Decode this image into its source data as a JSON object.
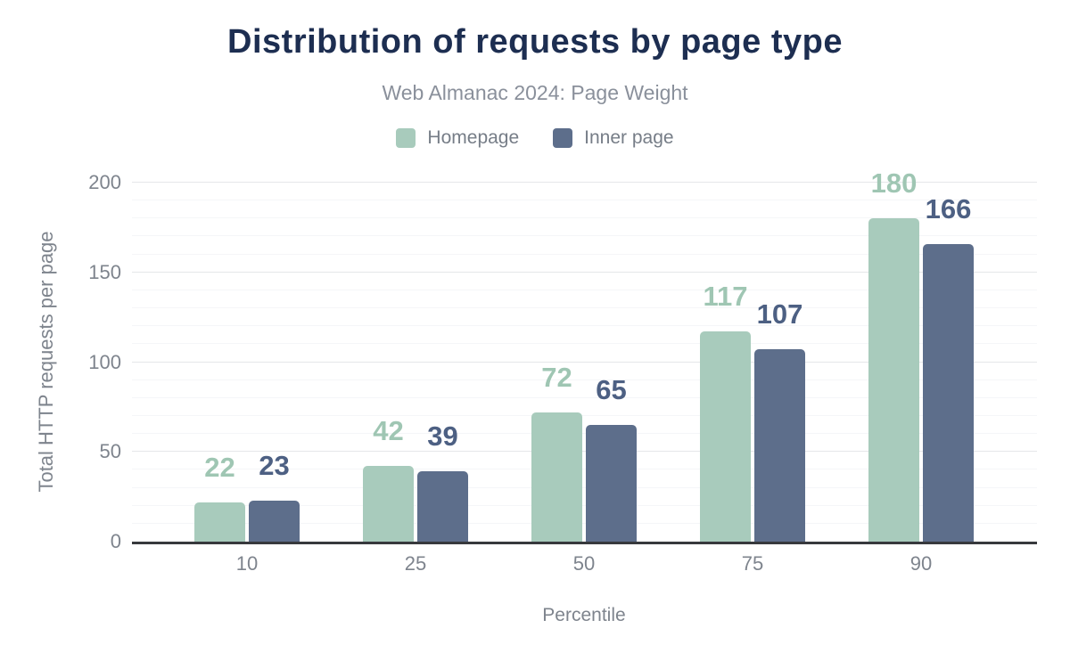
{
  "chart_data": {
    "type": "bar",
    "title": "Distribution of requests by page type",
    "subtitle": "Web Almanac 2024: Page Weight",
    "xlabel": "Percentile",
    "ylabel": "Total HTTP requests per page",
    "categories": [
      "10",
      "25",
      "50",
      "75",
      "90"
    ],
    "series": [
      {
        "name": "Homepage",
        "values": [
          22,
          42,
          72,
          117,
          180
        ],
        "bar_color": "#a8cbbc",
        "label_color": "#9fc6b3"
      },
      {
        "name": "Inner page",
        "values": [
          23,
          39,
          65,
          107,
          166
        ],
        "bar_color": "#5d6e8b",
        "label_color": "#4d6083"
      }
    ],
    "ylim": [
      0,
      200
    ],
    "yticks": [
      0,
      50,
      100,
      150,
      200
    ],
    "minor_tick_interval": 10,
    "grid": true,
    "legend_position": "top",
    "value_labels": true
  },
  "colors": {
    "background": "#ffffff",
    "title_text": "#1d2e51",
    "subtitle_text": "#8a909b",
    "legend_text": "#767d87",
    "axis_text": "#7e848d",
    "axis_line": "#37393d",
    "grid_major": "#e5e7e9",
    "grid_minor": "#f5f6f8"
  }
}
